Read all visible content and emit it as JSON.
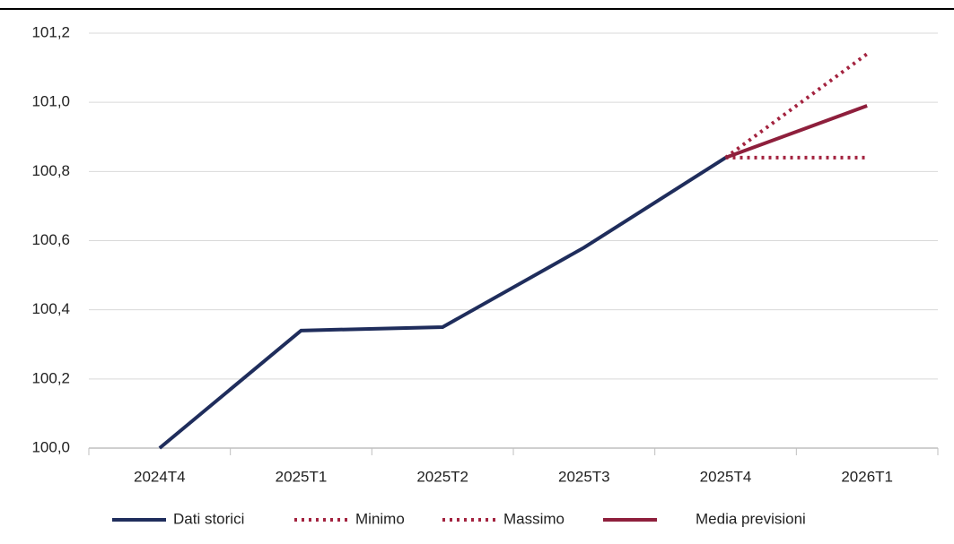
{
  "chart_data": {
    "type": "line",
    "categories": [
      "2024T4",
      "2025T1",
      "2025T2",
      "2025T3",
      "2025T4",
      "2026T1"
    ],
    "series": [
      {
        "name": "Dati storici",
        "color": "#1f2d5c",
        "style": "solid",
        "values": [
          100.0,
          100.34,
          100.35,
          100.58,
          100.84,
          null
        ]
      },
      {
        "name": "Minimo",
        "color": "#a3233f",
        "style": "dotted",
        "values": [
          null,
          null,
          null,
          null,
          100.84,
          100.84
        ]
      },
      {
        "name": "Massimo",
        "color": "#a3233f",
        "style": "dotted",
        "values": [
          null,
          null,
          null,
          null,
          100.84,
          101.14
        ]
      },
      {
        "name": "Media previsioni",
        "color": "#8e1f3c",
        "style": "solid",
        "values": [
          null,
          null,
          null,
          null,
          100.84,
          100.99
        ]
      }
    ],
    "ylim": [
      100.0,
      101.2
    ],
    "yticks": [
      {
        "value": 100.0,
        "label": "100,0"
      },
      {
        "value": 100.2,
        "label": "100,2"
      },
      {
        "value": 100.4,
        "label": "100,4"
      },
      {
        "value": 100.6,
        "label": "100,6"
      },
      {
        "value": 100.8,
        "label": "100,8"
      },
      {
        "value": 101.0,
        "label": "101,0"
      },
      {
        "value": 101.2,
        "label": "101,2"
      }
    ],
    "grid": true,
    "legend": "bottom"
  }
}
